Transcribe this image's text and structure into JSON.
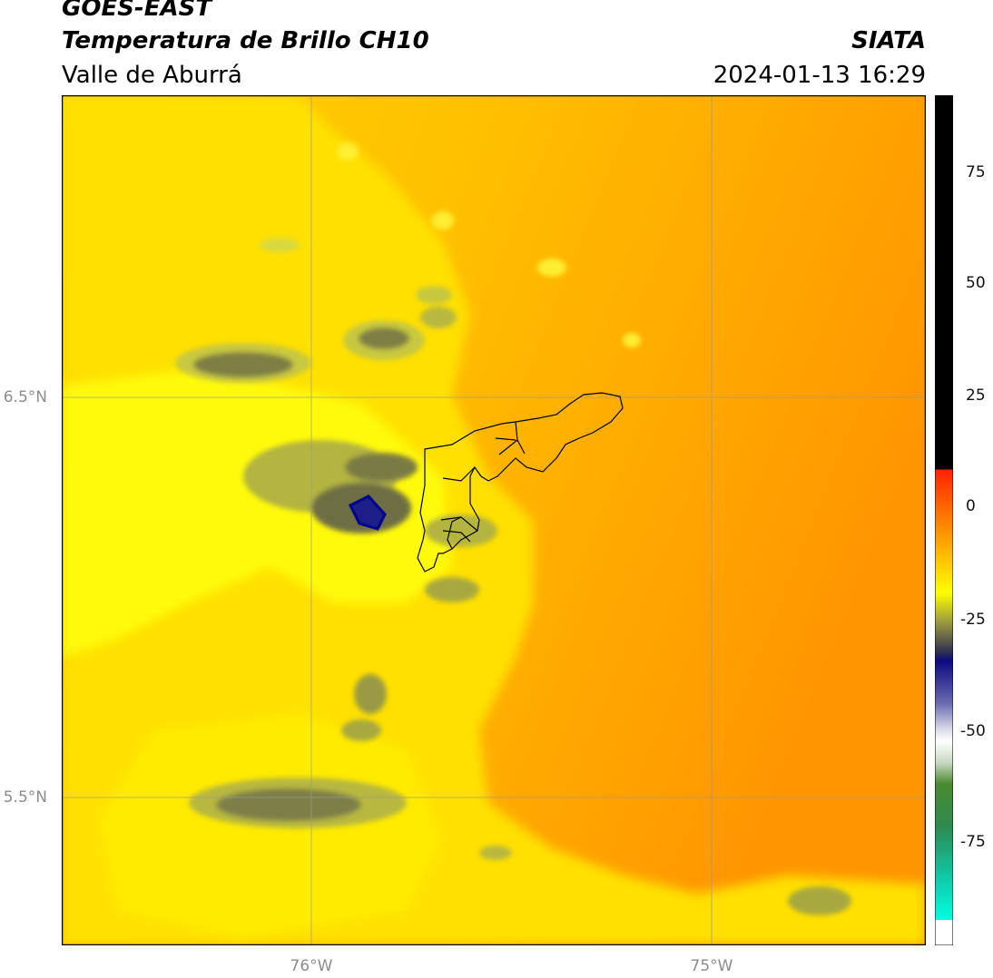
{
  "header": {
    "satellite": "GOES-EAST",
    "product": "Temperatura de Brillo CH10",
    "region": "Valle de Aburrá",
    "organization": "SIATA",
    "datetime": "2024-01-13 16:29"
  },
  "axes": {
    "lat_labels": [
      "6.5°N",
      "5.5°N"
    ],
    "lon_labels": [
      "76°W",
      "75°W"
    ]
  },
  "colorbar": {
    "ticks": [
      "75",
      "50",
      "25",
      "0",
      "-25",
      "-50",
      "-75"
    ],
    "colors": {
      "black": "#000000",
      "red": "#ff2000",
      "orange": "#ff8c00",
      "yellow": "#ffff00",
      "olive": "#6f6f3a",
      "navy": "#0a0a80",
      "white": "#ffffff",
      "green": "#2e8a2e",
      "cyan": "#00ffe0"
    }
  },
  "field_colors": {
    "background_orange": "#ff9a00",
    "mid_orange": "#ffb000",
    "yellow": "#ffe600",
    "cloud_olive": "#8a8a40",
    "cold_core": "#181880"
  }
}
